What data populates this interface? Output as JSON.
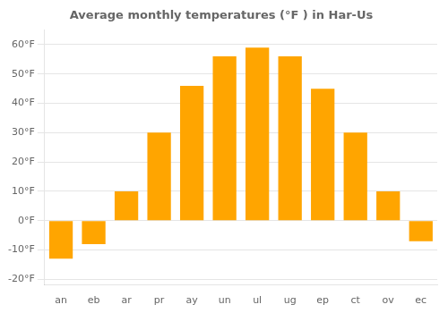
{
  "chart_data": {
    "type": "bar",
    "title": "Average monthly temperatures (°F ) in Har-Us",
    "categories": [
      "an",
      "eb",
      "ar",
      "pr",
      "ay",
      "un",
      "ul",
      "ug",
      "ep",
      "ct",
      "ov",
      "ec"
    ],
    "values": [
      -13,
      -8,
      10,
      30,
      46,
      56,
      59,
      56,
      45,
      30,
      10,
      -7
    ],
    "color": "#FFA500",
    "ylim": [
      -22,
      65
    ],
    "yticks": [
      {
        "value": -20,
        "label": "-20°F"
      },
      {
        "value": -10,
        "label": "-10°F"
      },
      {
        "value": 0,
        "label": "0°F"
      },
      {
        "value": 10,
        "label": "10°F"
      },
      {
        "value": 20,
        "label": "20°F"
      },
      {
        "value": 30,
        "label": "30°F"
      },
      {
        "value": 40,
        "label": "40°F"
      },
      {
        "value": 50,
        "label": "50°F"
      },
      {
        "value": 60,
        "label": "60°F"
      }
    ],
    "grid": true
  }
}
